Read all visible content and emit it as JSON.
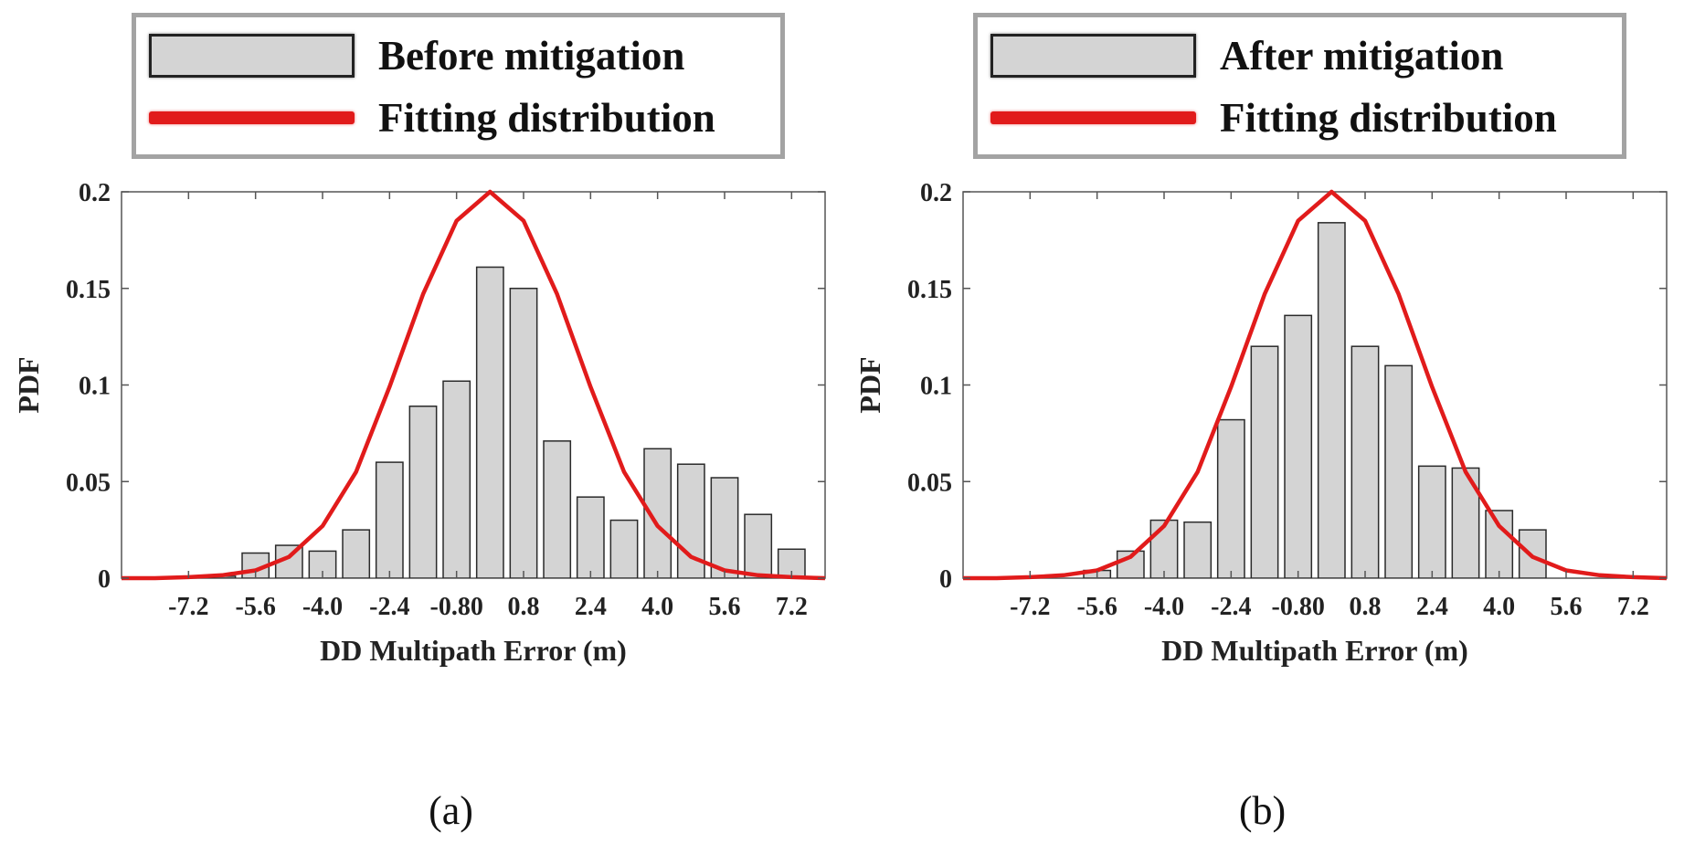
{
  "colors": {
    "bar_fill": "#d4d4d4",
    "bar_edge": "#2a2a2a",
    "curve": "#e11b1b",
    "legend_border": "#a3a3a3"
  },
  "chart_data": [
    {
      "panel": "a",
      "type": "bar",
      "caption": "(a)",
      "legend": {
        "bars_label": "Before mitigation",
        "curve_label": "Fitting distribution"
      },
      "xlabel": "DD Multipath Error (m)",
      "ylabel": "PDF",
      "xlim": [
        -8.8,
        8.0
      ],
      "ylim": [
        0,
        0.2
      ],
      "xticks": [
        -7.2,
        -5.6,
        -4.0,
        -2.4,
        -0.8,
        0.8,
        2.4,
        4.0,
        5.6,
        7.2
      ],
      "xtick_labels": [
        "-7.2",
        "-5.6",
        "-4.0",
        "-2.4",
        "-0.80",
        "0.8",
        "2.4",
        "4.0",
        "5.6",
        "7.2"
      ],
      "yticks": [
        0,
        0.05,
        0.1,
        0.15,
        0.2
      ],
      "ytick_labels": [
        "0",
        "0.05",
        "0.1",
        "0.15",
        "0.2"
      ],
      "bar_width": 0.64,
      "bars": {
        "centers": [
          -6.4,
          -5.6,
          -4.8,
          -4.0,
          -3.2,
          -2.4,
          -1.6,
          -0.8,
          0.0,
          0.8,
          1.6,
          2.4,
          3.2,
          4.0,
          4.8,
          5.6,
          6.4,
          7.2,
          8.0
        ],
        "values": [
          0.001,
          0.013,
          0.017,
          0.014,
          0.025,
          0.06,
          0.089,
          0.102,
          0.161,
          0.15,
          0.071,
          0.042,
          0.03,
          0.067,
          0.059,
          0.052,
          0.033,
          0.015,
          0.0
        ]
      },
      "curve": {
        "x": [
          -8.8,
          -8.0,
          -7.2,
          -6.4,
          -5.6,
          -4.8,
          -4.0,
          -3.2,
          -2.4,
          -1.6,
          -0.8,
          0.0,
          0.8,
          1.6,
          2.4,
          3.2,
          4.0,
          4.8,
          5.6,
          6.4,
          7.2,
          8.0
        ],
        "y": [
          0.0,
          0.0,
          0.0005,
          0.0015,
          0.004,
          0.011,
          0.027,
          0.055,
          0.099,
          0.147,
          0.185,
          0.2,
          0.185,
          0.147,
          0.099,
          0.055,
          0.027,
          0.011,
          0.004,
          0.0015,
          0.0005,
          0.0
        ]
      }
    },
    {
      "panel": "b",
      "type": "bar",
      "caption": "(b)",
      "legend": {
        "bars_label": "After mitigation",
        "curve_label": "Fitting distribution"
      },
      "xlabel": "DD Multipath Error (m)",
      "ylabel": "PDF",
      "xlim": [
        -8.8,
        8.0
      ],
      "ylim": [
        0,
        0.2
      ],
      "xticks": [
        -7.2,
        -5.6,
        -4.0,
        -2.4,
        -0.8,
        0.8,
        2.4,
        4.0,
        5.6,
        7.2
      ],
      "xtick_labels": [
        "-7.2",
        "-5.6",
        "-4.0",
        "-2.4",
        "-0.80",
        "0.8",
        "2.4",
        "4.0",
        "5.6",
        "7.2"
      ],
      "yticks": [
        0,
        0.05,
        0.1,
        0.15,
        0.2
      ],
      "ytick_labels": [
        "0",
        "0.05",
        "0.1",
        "0.15",
        "0.2"
      ],
      "bar_width": 0.64,
      "bars": {
        "centers": [
          -5.6,
          -4.8,
          -4.0,
          -3.2,
          -2.4,
          -1.6,
          -0.8,
          0.0,
          0.8,
          1.6,
          2.4,
          3.2,
          4.0,
          4.8
        ],
        "values": [
          0.004,
          0.014,
          0.03,
          0.029,
          0.082,
          0.12,
          0.136,
          0.184,
          0.12,
          0.11,
          0.058,
          0.057,
          0.035,
          0.025
        ]
      },
      "curve": {
        "x": [
          -8.8,
          -8.0,
          -7.2,
          -6.4,
          -5.6,
          -4.8,
          -4.0,
          -3.2,
          -2.4,
          -1.6,
          -0.8,
          0.0,
          0.8,
          1.6,
          2.4,
          3.2,
          4.0,
          4.8,
          5.6,
          6.4,
          7.2,
          8.0
        ],
        "y": [
          0.0,
          0.0,
          0.0005,
          0.0015,
          0.004,
          0.011,
          0.027,
          0.055,
          0.099,
          0.147,
          0.185,
          0.2,
          0.185,
          0.147,
          0.099,
          0.055,
          0.027,
          0.011,
          0.004,
          0.0015,
          0.0005,
          0.0
        ]
      }
    }
  ]
}
